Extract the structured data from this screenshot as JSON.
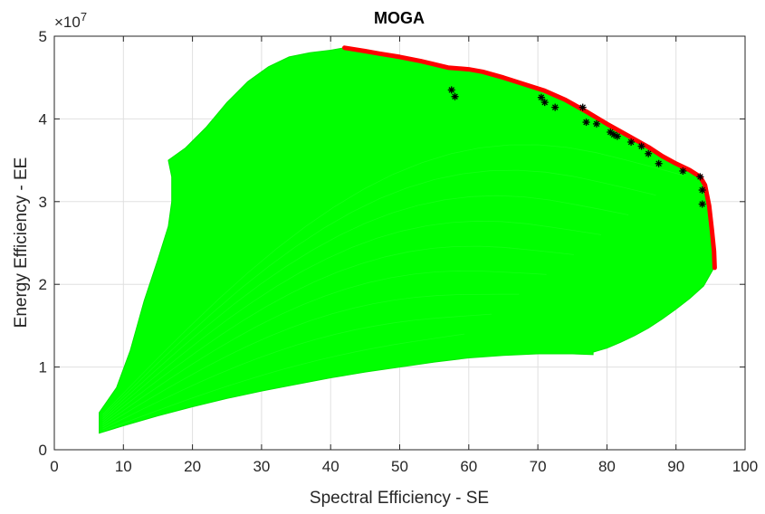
{
  "chart_data": {
    "type": "line",
    "title": "MOGA",
    "xlabel": "Spectral Efficiency - SE",
    "ylabel": "Energy Efficiency - EE",
    "y_exponent_label": "×10",
    "y_exponent_power": "7",
    "xlim": [
      0,
      100
    ],
    "ylim": [
      0,
      5
    ],
    "y_scale_factor": 10000000,
    "x_ticks": [
      "0",
      "10",
      "20",
      "30",
      "40",
      "50",
      "60",
      "70",
      "80",
      "90",
      "100"
    ],
    "y_ticks": [
      "0",
      "1",
      "2",
      "3",
      "4",
      "5"
    ],
    "grid": true,
    "colors": {
      "region": "#00ff00",
      "front": "#ff0000",
      "points": "#000000",
      "grid": "#e0e0e0",
      "axis": "#262626"
    },
    "series": [
      {
        "type": "area",
        "boundary": [
          [
            6.5,
            2.0
          ],
          [
            10,
            2.9
          ],
          [
            15,
            4.1
          ],
          [
            20,
            5.2
          ],
          [
            25,
            6.2
          ],
          [
            30,
            7.1
          ],
          [
            35,
            7.9
          ],
          [
            40,
            8.7
          ],
          [
            45,
            9.4
          ],
          [
            50,
            10.0
          ],
          [
            55,
            10.6
          ],
          [
            60,
            11.1
          ],
          [
            65,
            11.4
          ],
          [
            70,
            11.6
          ],
          [
            75,
            11.6
          ],
          [
            78,
            11.5
          ],
          [
            78,
            11.8
          ],
          [
            80,
            12.3
          ],
          [
            82,
            13.0
          ],
          [
            84,
            13.8
          ],
          [
            86,
            14.7
          ],
          [
            88,
            15.8
          ],
          [
            90,
            17.0
          ],
          [
            92,
            18.3
          ],
          [
            94,
            19.8
          ],
          [
            95.5,
            22.0
          ],
          [
            95.3,
            25.5
          ],
          [
            94.8,
            29.0
          ],
          [
            94.2,
            32.0
          ],
          [
            93.5,
            33.0
          ],
          [
            90,
            34.5
          ],
          [
            87,
            35.8
          ],
          [
            84,
            37.3
          ],
          [
            81,
            38.8
          ],
          [
            78,
            40.3
          ],
          [
            75,
            41.7
          ],
          [
            72,
            42.9
          ],
          [
            69,
            43.9
          ],
          [
            66,
            44.6
          ],
          [
            63,
            45.3
          ],
          [
            60,
            46.0
          ],
          [
            57,
            46.2
          ],
          [
            55,
            46.6
          ],
          [
            52,
            47.2
          ],
          [
            50,
            47.5
          ],
          [
            47,
            48.0
          ],
          [
            45,
            48.3
          ],
          [
            42,
            48.6
          ],
          [
            40,
            48.3
          ],
          [
            37,
            48.0
          ],
          [
            34,
            47.5
          ],
          [
            31,
            46.3
          ],
          [
            28,
            44.5
          ],
          [
            25,
            42.0
          ],
          [
            22,
            39.0
          ],
          [
            19,
            36.5
          ],
          [
            16.5,
            35.0
          ],
          [
            17,
            33.0
          ],
          [
            17,
            30.0
          ],
          [
            16.5,
            27.0
          ],
          [
            15,
            23.0
          ],
          [
            13,
            18.0
          ],
          [
            11,
            12.0
          ],
          [
            9,
            7.5
          ],
          [
            6.5,
            4.5
          ]
        ]
      },
      {
        "type": "line",
        "points": [
          [
            42,
            48.6
          ],
          [
            45,
            48.2
          ],
          [
            47,
            47.9
          ],
          [
            50,
            47.5
          ],
          [
            53,
            47.0
          ],
          [
            55,
            46.6
          ],
          [
            57,
            46.2
          ],
          [
            60,
            46.0
          ],
          [
            62,
            45.7
          ],
          [
            65,
            45.0
          ],
          [
            68,
            44.2
          ],
          [
            71,
            43.4
          ],
          [
            74,
            42.3
          ],
          [
            77,
            40.9
          ],
          [
            80,
            39.4
          ],
          [
            83,
            38.0
          ],
          [
            86,
            36.6
          ],
          [
            88,
            35.5
          ],
          [
            90,
            34.6
          ],
          [
            92,
            33.8
          ],
          [
            93.5,
            33.0
          ],
          [
            94.2,
            32.0
          ],
          [
            94.8,
            29.5
          ],
          [
            95.2,
            26.5
          ],
          [
            95.5,
            24.0
          ],
          [
            95.6,
            22.0
          ]
        ]
      },
      {
        "type": "scatter",
        "points": [
          [
            57.5,
            43.5
          ],
          [
            58,
            42.7
          ],
          [
            70.5,
            42.6
          ],
          [
            71,
            42.0
          ],
          [
            72.5,
            41.4
          ],
          [
            76.5,
            41.4
          ],
          [
            77,
            39.6
          ],
          [
            78.5,
            39.4
          ],
          [
            80.5,
            38.4
          ],
          [
            81,
            38.1
          ],
          [
            81.5,
            37.9
          ],
          [
            83.5,
            37.2
          ],
          [
            85,
            36.7
          ],
          [
            86,
            35.8
          ],
          [
            87.5,
            34.6
          ],
          [
            91,
            33.7
          ],
          [
            93.5,
            33.0
          ],
          [
            93.8,
            31.4
          ],
          [
            93.8,
            29.7
          ]
        ]
      }
    ]
  }
}
